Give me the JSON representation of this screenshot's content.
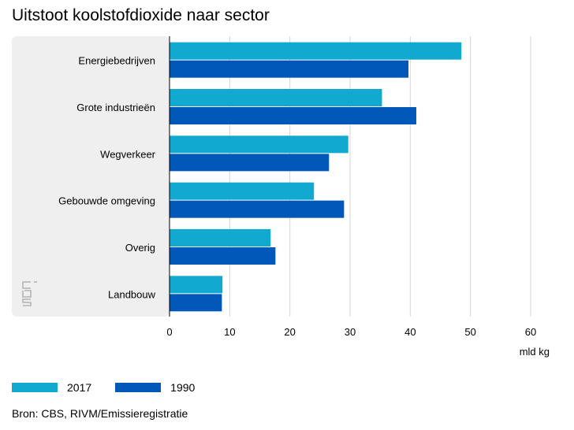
{
  "colors": {
    "series_2017": "#12a9d1",
    "series_1990": "#0158b8",
    "panel_bg": "#efefef",
    "grid": "#d4d4d4",
    "logo": "#b3b3b3"
  },
  "logo_icon": "cbs-logo-icon",
  "source": "Bron: CBS, RIVM/Emissieregistratie",
  "chart_data": {
    "type": "bar",
    "orientation": "horizontal",
    "title": "Uitstoot koolstofdioxide naar sector",
    "unit_label": "mld kg",
    "categories": [
      "Energiebedrijven",
      "Grote industrieën",
      "Wegverkeer",
      "Gebouwde omgeving",
      "Overig",
      "Landbouw"
    ],
    "series": [
      {
        "name": "2017",
        "color": "#12a9d1",
        "values": [
          48.5,
          35.3,
          29.7,
          24.0,
          16.8,
          8.8
        ]
      },
      {
        "name": "1990",
        "color": "#0158b8",
        "values": [
          39.7,
          41.0,
          26.5,
          29.0,
          17.6,
          8.7
        ]
      }
    ],
    "xlim": [
      0,
      60
    ],
    "xticks": [
      "0",
      "10",
      "20",
      "30",
      "40",
      "50",
      "60"
    ],
    "grid": true,
    "legend_position": "bottom-left"
  }
}
